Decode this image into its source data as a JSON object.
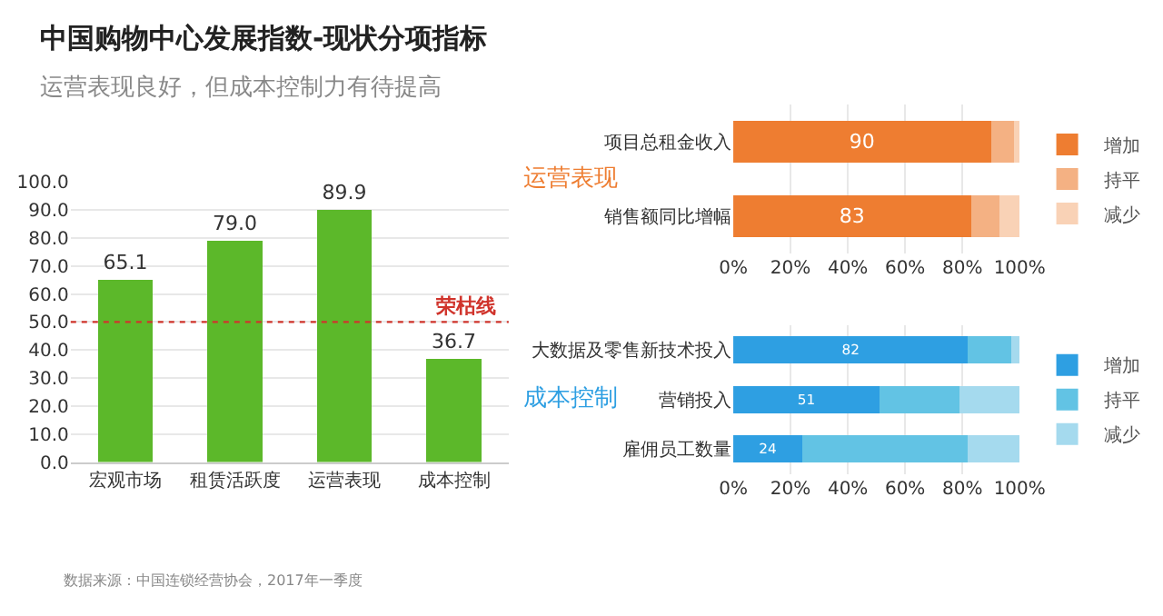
{
  "chart_data": [
    {
      "type": "bar",
      "title": "中国购物中心发展指数-现状分项指标",
      "subtitle": "运营表现良好，但成本控制力有待提高",
      "categories": [
        "宏观市场",
        "租赁活跃度",
        "运营表现",
        "成本控制"
      ],
      "values": [
        65.1,
        79.0,
        89.9,
        36.7
      ],
      "value_labels": [
        "65.1",
        "79.0",
        "89.9",
        "36.7"
      ],
      "color": "#5cb82a",
      "ylim": [
        0,
        100
      ],
      "yticks": [
        {
          "value": 0,
          "label": "0.0"
        },
        {
          "value": 10,
          "label": "10.0"
        },
        {
          "value": 20,
          "label": "20.0"
        },
        {
          "value": 30,
          "label": "30.0"
        },
        {
          "value": 40,
          "label": "40.0"
        },
        {
          "value": 50,
          "label": "50.0"
        },
        {
          "value": 60,
          "label": "60.0"
        },
        {
          "value": 70,
          "label": "70.0"
        },
        {
          "value": 80,
          "label": "80.0"
        },
        {
          "value": 90,
          "label": "90.0"
        },
        {
          "value": 100,
          "label": "100.0"
        }
      ],
      "grid": "y",
      "legend": false,
      "ref_lines": [
        {
          "axis": "y",
          "value": 50,
          "label": "荣枯线",
          "color": "#d0342c",
          "line_style": "dotted"
        }
      ],
      "annotations": [
        "数据来源：中国连锁经营协会，2017年一季度"
      ]
    },
    {
      "type": "bar",
      "orientation": "horizontal",
      "stacked": true,
      "categories": [
        "项目总租金收入",
        "销售额同比增幅"
      ],
      "series": [
        {
          "name": "增加",
          "color": "#ee7d31",
          "values": [
            90,
            83
          ],
          "value_labels": [
            "90",
            "83"
          ]
        },
        {
          "name": "持平",
          "color": "#f4b183",
          "values": [
            8,
            10
          ]
        },
        {
          "name": "减少",
          "color": "#f9d2b6",
          "values": [
            2,
            7
          ]
        }
      ],
      "xlim": [
        0,
        100
      ],
      "xticks": [
        {
          "value": 0,
          "label": "0%"
        },
        {
          "value": 20,
          "label": "20%"
        },
        {
          "value": 40,
          "label": "40%"
        },
        {
          "value": 60,
          "label": "60%"
        },
        {
          "value": 80,
          "label": "80%"
        },
        {
          "value": 100,
          "label": "100%"
        }
      ],
      "grid": "x",
      "legend": "right",
      "annotations": [
        "运营表现"
      ]
    },
    {
      "type": "bar",
      "orientation": "horizontal",
      "stacked": true,
      "categories": [
        "大数据及零售新技术投入",
        "营销投入",
        "雇佣员工数量"
      ],
      "series": [
        {
          "name": "增加",
          "color": "#2e9fe2",
          "values": [
            82,
            51,
            24
          ],
          "value_labels": [
            "82",
            "51",
            "24"
          ]
        },
        {
          "name": "持平",
          "color": "#62c3e4",
          "values": [
            15,
            28,
            58
          ]
        },
        {
          "name": "减少",
          "color": "#a5daee",
          "values": [
            3,
            21,
            18
          ]
        }
      ],
      "xlim": [
        0,
        100
      ],
      "xticks": [
        {
          "value": 0,
          "label": "0%"
        },
        {
          "value": 20,
          "label": "20%"
        },
        {
          "value": 40,
          "label": "40%"
        },
        {
          "value": 60,
          "label": "60%"
        },
        {
          "value": 80,
          "label": "80%"
        },
        {
          "value": 100,
          "label": "100%"
        }
      ],
      "grid": "x",
      "legend": "right",
      "annotations": [
        "成本控制"
      ]
    }
  ]
}
